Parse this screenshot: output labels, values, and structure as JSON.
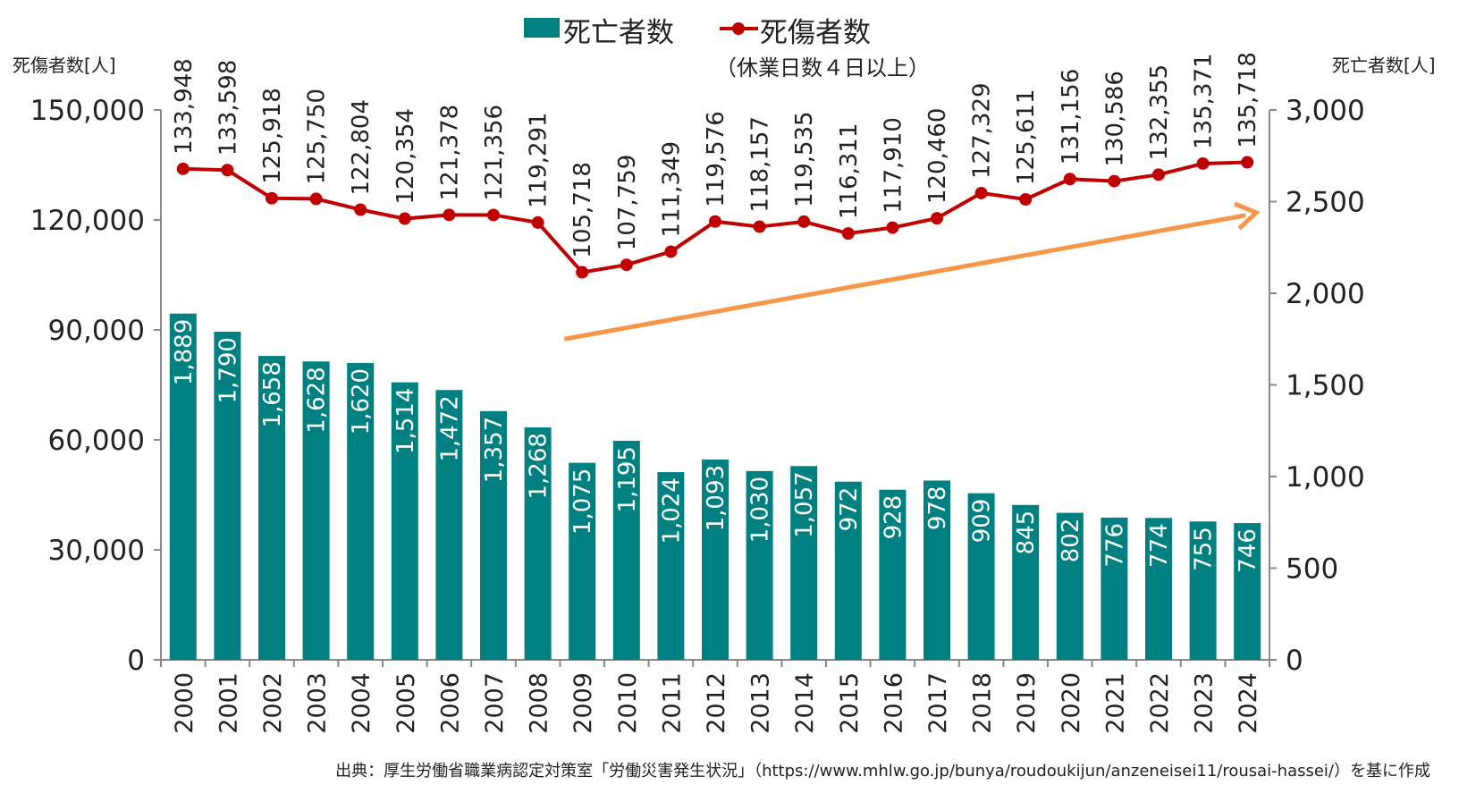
{
  "colors": {
    "bar": "#008080",
    "line": "#c00000",
    "arrow": "#f79646",
    "axis": "#888888"
  },
  "legend": {
    "bar_label": "死亡者数",
    "line_label": "死傷者数",
    "line_sub": "（休業日数４日以上）"
  },
  "axis_units": {
    "left": "死傷者数[人]",
    "right": "死亡者数[人]"
  },
  "source": "出典：厚生労働省職業病認定対策室「労働災害発生状況」（https://www.mhlw.go.jp/bunya/roudoukijun/anzeneisei11/rousai-hassei/）を基に作成",
  "chart_data": {
    "type": "bar+line",
    "categories": [
      "2000",
      "2001",
      "2002",
      "2003",
      "2004",
      "2005",
      "2006",
      "2007",
      "2008",
      "2009",
      "2010",
      "2011",
      "2012",
      "2013",
      "2014",
      "2015",
      "2016",
      "2017",
      "2018",
      "2019",
      "2020",
      "2021",
      "2022",
      "2023",
      "2024"
    ],
    "series": [
      {
        "name": "死亡者数",
        "type": "bar",
        "axis": "right",
        "values": [
          1889,
          1790,
          1658,
          1628,
          1620,
          1514,
          1472,
          1357,
          1268,
          1075,
          1195,
          1024,
          1093,
          1030,
          1057,
          972,
          928,
          978,
          909,
          845,
          802,
          776,
          774,
          755,
          746
        ],
        "labels": [
          "1,889",
          "1,790",
          "1,658",
          "1,628",
          "1,620",
          "1,514",
          "1,472",
          "1,357",
          "1,268",
          "1,075",
          "1,195",
          "1,024",
          "1,093",
          "1,030",
          "1,057",
          "972",
          "928",
          "978",
          "909",
          "845",
          "802",
          "776",
          "774",
          "755",
          "746"
        ]
      },
      {
        "name": "死傷者数",
        "type": "line",
        "axis": "left",
        "values": [
          133948,
          133598,
          125918,
          125750,
          122804,
          120354,
          121378,
          121356,
          119291,
          105718,
          107759,
          111349,
          119576,
          118157,
          119535,
          116311,
          117910,
          120460,
          127329,
          125611,
          131156,
          130586,
          132355,
          135371,
          135718
        ],
        "labels": [
          "133,948",
          "133,598",
          "125,918",
          "125,750",
          "122,804",
          "120,354",
          "121,378",
          "121,356",
          "119,291",
          "105,718",
          "107,759",
          "111,349",
          "119,576",
          "118,157",
          "119,535",
          "116,311",
          "117,910",
          "120,460",
          "127,329",
          "125,611",
          "131,156",
          "130,586",
          "132,355",
          "135,371",
          "135,718"
        ]
      }
    ],
    "left_axis": {
      "min": 0,
      "max": 150000,
      "ticks": [
        "0",
        "30,000",
        "60,000",
        "90,000",
        "120,000",
        "150,000"
      ]
    },
    "right_axis": {
      "min": 0,
      "max": 3000,
      "ticks": [
        "0",
        "500",
        "1,000",
        "1,500",
        "2,000",
        "2,500",
        "3,000"
      ]
    },
    "trend_arrow": {
      "from": {
        "category": "2009",
        "right_value": 1750
      },
      "to": {
        "category": "2024",
        "right_value": 2440
      }
    },
    "legend_position": "top-center"
  }
}
